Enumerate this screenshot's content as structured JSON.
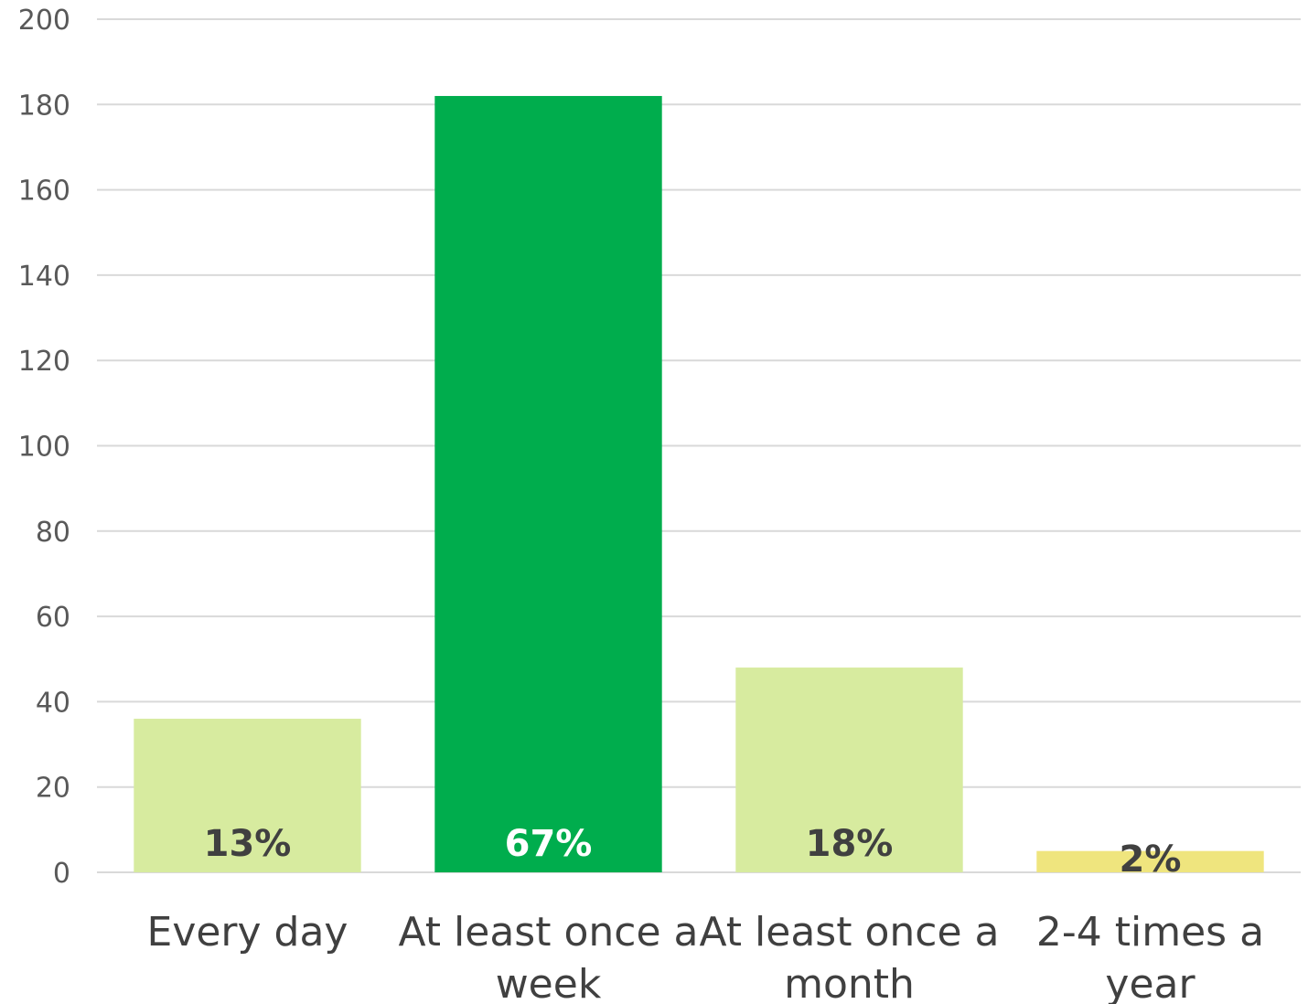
{
  "chart_data": {
    "type": "bar",
    "categories": [
      [
        "Every day"
      ],
      [
        "At least once a",
        "week"
      ],
      [
        "At least once a",
        "month"
      ],
      [
        "2-4 times a",
        "year"
      ]
    ],
    "values": [
      36,
      182,
      48,
      5
    ],
    "data_labels": [
      "13%",
      "67%",
      "18%",
      "2%"
    ],
    "bar_colors": [
      "#d7eb9f",
      "#00ad4d",
      "#d7eb9f",
      "#efe57e"
    ],
    "data_label_colors": [
      "#404040",
      "#ffffff",
      "#404040",
      "#404040"
    ],
    "ylim": [
      0,
      200
    ],
    "yticks": [
      "0",
      "20",
      "40",
      "60",
      "80",
      "100",
      "120",
      "140",
      "160",
      "180",
      "200"
    ],
    "grid": true,
    "legend": "none"
  }
}
